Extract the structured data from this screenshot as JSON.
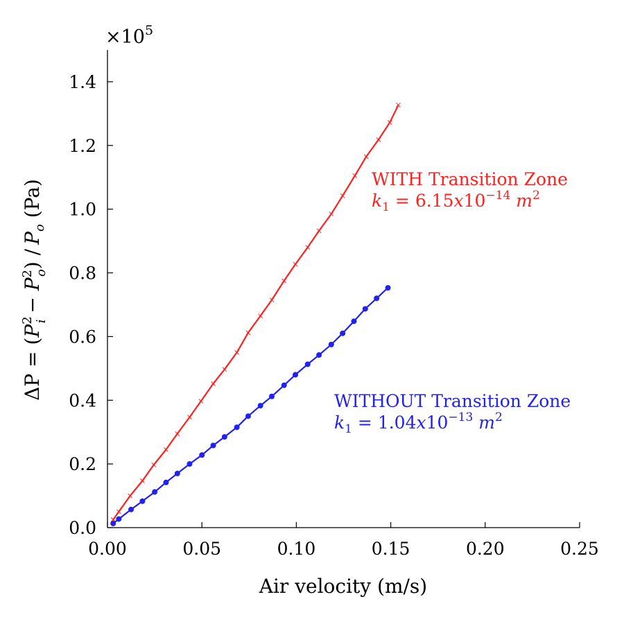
{
  "chart_data": {
    "type": "line",
    "xlabel": "Air velocity (m/s)",
    "ylabel": "ΔP = (P_i^2 − P_o^2) / P_o (Pa)",
    "ylabel_parts": {
      "lhs": "ΔP = (",
      "p1": "P",
      "p1_sub": "i",
      "p1_sup": "2",
      "minus": " − ",
      "p2": "P",
      "p2_sub": "o",
      "p2_sup": "2",
      "close": ") /",
      "p3": "P",
      "p3_sub": "o",
      "unit": " (Pa)"
    },
    "y_multiplier": {
      "base": "×10",
      "exponent": "5"
    },
    "xlim": [
      0,
      0.25
    ],
    "ylim": [
      0,
      1.5
    ],
    "x_ticks": [
      0,
      0.05,
      0.1,
      0.15,
      0.2,
      0.25
    ],
    "x_tick_labels": [
      "0.00",
      "0.05",
      "0.10",
      "0.15",
      "0.20",
      "0.25"
    ],
    "y_ticks": [
      0,
      0.2,
      0.4,
      0.6,
      0.8,
      1.0,
      1.2,
      1.4
    ],
    "y_tick_labels": [
      "0.0",
      "0.2",
      "0.4",
      "0.6",
      "0.8",
      "1.0",
      "1.2",
      "1.4"
    ],
    "grid": false,
    "series": [
      {
        "color": "#ff2020",
        "marker": "x",
        "x": [
          0.003,
          0.006,
          0.012,
          0.0185,
          0.0245,
          0.031,
          0.037,
          0.0435,
          0.0495,
          0.056,
          0.062,
          0.0685,
          0.0745,
          0.081,
          0.087,
          0.0935,
          0.0995,
          0.106,
          0.112,
          0.1185,
          0.1245,
          0.131,
          0.137,
          0.1435,
          0.1495,
          0.154
        ],
        "y": [
          0.025,
          0.05,
          0.1,
          0.147,
          0.197,
          0.245,
          0.295,
          0.347,
          0.397,
          0.452,
          0.497,
          0.55,
          0.612,
          0.665,
          0.715,
          0.775,
          0.827,
          0.88,
          0.932,
          0.985,
          1.042,
          1.105,
          1.165,
          1.218,
          1.272,
          1.327
        ]
      },
      {
        "color": "#2222ee",
        "marker": "o",
        "x": [
          0.003,
          0.006,
          0.0125,
          0.0185,
          0.025,
          0.031,
          0.037,
          0.0435,
          0.05,
          0.056,
          0.062,
          0.0685,
          0.0745,
          0.081,
          0.087,
          0.0935,
          0.0995,
          0.106,
          0.112,
          0.1185,
          0.1245,
          0.1305,
          0.1365,
          0.1425,
          0.1485
        ],
        "y": [
          0.013,
          0.027,
          0.057,
          0.083,
          0.112,
          0.142,
          0.17,
          0.2,
          0.228,
          0.258,
          0.285,
          0.315,
          0.35,
          0.383,
          0.412,
          0.447,
          0.48,
          0.513,
          0.542,
          0.575,
          0.61,
          0.648,
          0.687,
          0.72,
          0.753
        ]
      }
    ],
    "annotations": [
      {
        "color": "#ff2020",
        "line1": "WITH Transition Zone",
        "k_var": "k",
        "k_sub": "1",
        "k_eq": " = 6.15",
        "k_x": "x",
        "k_ten": "10",
        "k_exp": "−14",
        "k_unit": " m",
        "k_unit_sup": "2"
      },
      {
        "color": "#2222ee",
        "line1": "WITHOUT Transition Zone",
        "k_var": "k",
        "k_sub": "1",
        "k_eq": " = 1.04",
        "k_x": "x",
        "k_ten": "10",
        "k_exp": "−13",
        "k_unit": " m",
        "k_unit_sup": "2"
      }
    ]
  }
}
